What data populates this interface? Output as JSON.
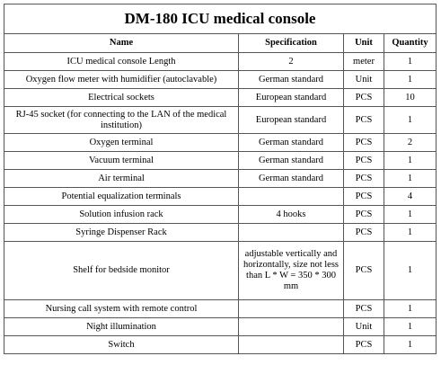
{
  "title": "DM-180 ICU medical console",
  "columns": [
    "Name",
    "Specification",
    "Unit",
    "Quantity"
  ],
  "rows": [
    {
      "name": "ICU medical console Length",
      "spec": "2",
      "unit": "meter",
      "qty": "1"
    },
    {
      "name": "Oxygen flow meter with humidifier (autoclavable)",
      "spec": "German standard",
      "unit": "Unit",
      "qty": "1"
    },
    {
      "name": "Electrical sockets",
      "spec": "European standard",
      "unit": "PCS",
      "qty": "10"
    },
    {
      "name": "RJ-45 socket (for connecting to the LAN of the medical institution)",
      "spec": "European standard",
      "unit": "PCS",
      "qty": "1"
    },
    {
      "name": "Oxygen terminal",
      "spec": "German standard",
      "unit": "PCS",
      "qty": "2"
    },
    {
      "name": "Vacuum terminal",
      "spec": "German standard",
      "unit": "PCS",
      "qty": "1"
    },
    {
      "name": "Air terminal",
      "spec": "German standard",
      "unit": "PCS",
      "qty": "1"
    },
    {
      "name": "Potential equalization terminals",
      "spec": "",
      "unit": "PCS",
      "qty": "4"
    },
    {
      "name": "Solution infusion rack",
      "spec": "4 hooks",
      "unit": "PCS",
      "qty": "1"
    },
    {
      "name": "Syringe Dispenser Rack",
      "spec": "",
      "unit": "PCS",
      "qty": "1"
    },
    {
      "name": "Shelf for bedside monitor",
      "spec": "adjustable vertically and horizontally, size not less than L * W = 350 * 300 mm",
      "unit": "PCS",
      "qty": "1"
    },
    {
      "name": "Nursing call system with remote control",
      "spec": "",
      "unit": "PCS",
      "qty": "1"
    },
    {
      "name": "Night illumination",
      "spec": "",
      "unit": "Unit",
      "qty": "1"
    },
    {
      "name": "Switch",
      "spec": "",
      "unit": "PCS",
      "qty": "1"
    }
  ]
}
